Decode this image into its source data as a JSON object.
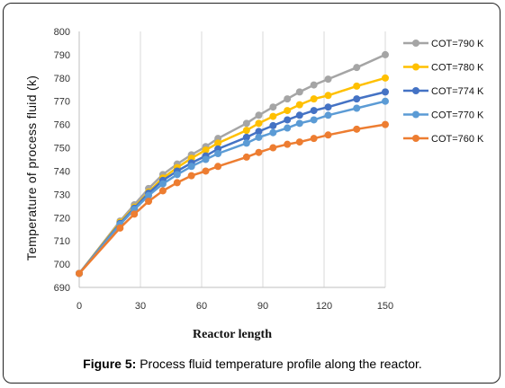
{
  "caption": {
    "label": "Figure 5:",
    "text": "Process fluid temperature profile along the reactor."
  },
  "chart_data": {
    "type": "line",
    "title": "",
    "xlabel": "Reactor length",
    "ylabel": "Temperature of process fluid (k)",
    "xlim": [
      0,
      150
    ],
    "ylim": [
      690,
      800
    ],
    "xticks": [
      0,
      30,
      60,
      90,
      120,
      150
    ],
    "yticks": [
      690,
      700,
      710,
      720,
      730,
      740,
      750,
      760,
      770,
      780,
      790,
      800
    ],
    "grid": "vertical",
    "legend": "right",
    "x": [
      0,
      20,
      27,
      34,
      41,
      48,
      55,
      62,
      68,
      82,
      88,
      95,
      102,
      108,
      115,
      122,
      136,
      150
    ],
    "series": [
      {
        "name": "COT=790 K",
        "color": "#A5A5A5",
        "values": [
          696,
          718.5,
          725.5,
          732.5,
          738.5,
          743,
          747,
          750.5,
          754,
          760.5,
          764,
          767.5,
          771,
          774,
          777,
          779.5,
          784.5,
          790
        ]
      },
      {
        "name": "COT=780 K",
        "color": "#FFC000",
        "values": [
          696,
          718,
          724.5,
          731,
          737,
          741.5,
          745.5,
          749,
          752,
          757.5,
          760.5,
          763.5,
          766,
          768.5,
          771,
          772.5,
          776.5,
          780
        ]
      },
      {
        "name": "COT=774 K",
        "color": "#4472C4",
        "values": [
          696,
          717.5,
          724,
          730.5,
          736,
          740,
          743.5,
          746.5,
          749.5,
          754.5,
          757,
          759.5,
          762,
          764,
          766,
          767.5,
          771,
          774
        ]
      },
      {
        "name": "COT=770 K",
        "color": "#5B9BD5",
        "values": [
          696,
          717,
          723.5,
          729.5,
          734.5,
          738.5,
          742,
          745,
          747.5,
          752,
          754.5,
          756.5,
          758.5,
          760.5,
          762,
          764,
          767,
          770
        ]
      },
      {
        "name": "COT=760 K",
        "color": "#ED7D31",
        "values": [
          696,
          715.5,
          721.5,
          727,
          731.5,
          735,
          738,
          740,
          742,
          746,
          748,
          750,
          751.5,
          752.5,
          754,
          755.5,
          758,
          760
        ]
      }
    ]
  }
}
